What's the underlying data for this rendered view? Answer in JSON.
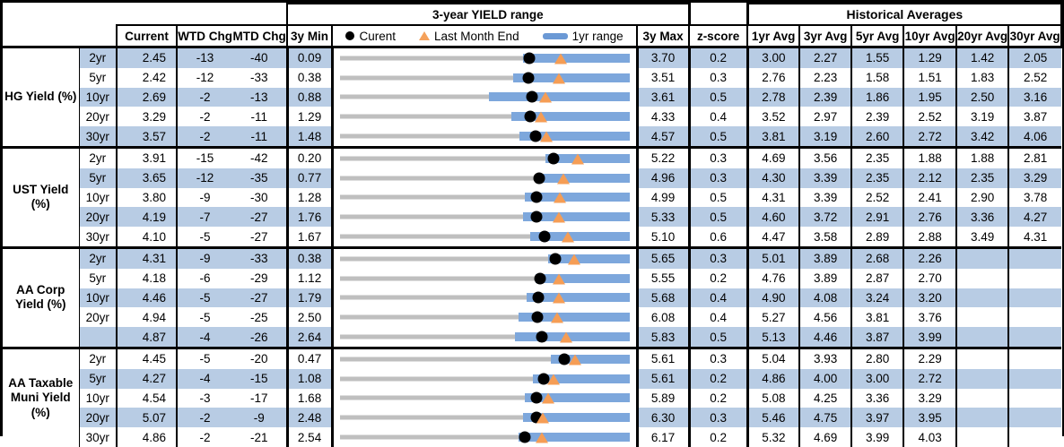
{
  "header": {
    "chart_title": "3-year YIELD range",
    "hist_title": "Historical Averages"
  },
  "columns": {
    "current": "Current",
    "wtd": "WTD Chg",
    "mtd": "MTD Chg",
    "min3y": "3y Min",
    "max3y": "3y Max",
    "z": "z-score",
    "avgs": [
      "1yr Avg",
      "3yr Avg",
      "5yr Avg",
      "10yr Avg",
      "20yr Avg",
      "30yr Avg"
    ]
  },
  "legend": {
    "current": "Curent",
    "last_month": "Last Month End",
    "range": "1yr range"
  },
  "colors": {
    "stripe": "#b8cce4",
    "bar_1yr": "#7da7dc",
    "track_3y": "#bfbfbf",
    "current_dot": "#000000",
    "last_month_triangle": "#f59d55",
    "border": "#000000"
  },
  "chart_data": {
    "type": "table",
    "title": "3-year YIELD range",
    "note": "Each row has a bullet chart: gray track spans 3y Min to 3y Max, blue bar is 1yr range, black dot is Current, orange triangle is Last Month End. range_1y low values are visual estimates.",
    "groups": [
      {
        "label": "HG Yield (%)",
        "rows": [
          {
            "tenor": "2yr",
            "current": 2.45,
            "wtd": -13,
            "mtd": -40,
            "min": 0.09,
            "max": 3.7,
            "z": 0.2,
            "last_month": 2.85,
            "range_1y": [
              2.38,
              3.7
            ],
            "avgs": [
              3.0,
              2.27,
              1.55,
              1.29,
              1.42,
              2.05
            ]
          },
          {
            "tenor": "5yr",
            "current": 2.42,
            "wtd": -12,
            "mtd": -33,
            "min": 0.38,
            "max": 3.51,
            "z": 0.3,
            "last_month": 2.75,
            "range_1y": [
              2.25,
              3.51
            ],
            "avgs": [
              2.76,
              2.23,
              1.58,
              1.51,
              1.83,
              2.52
            ]
          },
          {
            "tenor": "10yr",
            "current": 2.69,
            "wtd": -2,
            "mtd": -13,
            "min": 0.88,
            "max": 3.61,
            "z": 0.5,
            "last_month": 2.82,
            "range_1y": [
              2.29,
              3.61
            ],
            "avgs": [
              2.78,
              2.39,
              1.86,
              1.95,
              2.5,
              3.16
            ]
          },
          {
            "tenor": "20yr",
            "current": 3.29,
            "wtd": -2,
            "mtd": -11,
            "min": 1.29,
            "max": 4.33,
            "z": 0.4,
            "last_month": 3.4,
            "range_1y": [
              3.09,
              4.33
            ],
            "avgs": [
              3.52,
              2.97,
              2.39,
              2.52,
              3.19,
              3.87
            ]
          },
          {
            "tenor": "30yr",
            "current": 3.57,
            "wtd": -2,
            "mtd": -11,
            "min": 1.48,
            "max": 4.57,
            "z": 0.5,
            "last_month": 3.68,
            "range_1y": [
              3.4,
              4.57
            ],
            "avgs": [
              3.81,
              3.19,
              2.6,
              2.72,
              3.42,
              4.06
            ]
          }
        ]
      },
      {
        "label": "UST Yield (%)",
        "rows": [
          {
            "tenor": "2yr",
            "current": 3.91,
            "wtd": -15,
            "mtd": -42,
            "min": 0.2,
            "max": 5.22,
            "z": 0.3,
            "last_month": 4.33,
            "range_1y": [
              3.76,
              5.22
            ],
            "avgs": [
              4.69,
              3.56,
              2.35,
              1.88,
              1.88,
              2.81
            ]
          },
          {
            "tenor": "5yr",
            "current": 3.65,
            "wtd": -12,
            "mtd": -35,
            "min": 0.77,
            "max": 4.96,
            "z": 0.3,
            "last_month": 4.0,
            "range_1y": [
              3.6,
              4.96
            ],
            "avgs": [
              4.3,
              3.39,
              2.35,
              2.12,
              2.35,
              3.29
            ]
          },
          {
            "tenor": "10yr",
            "current": 3.8,
            "wtd": -9,
            "mtd": -30,
            "min": 1.28,
            "max": 4.99,
            "z": 0.5,
            "last_month": 4.1,
            "range_1y": [
              3.65,
              4.99
            ],
            "avgs": [
              4.31,
              3.39,
              2.52,
              2.41,
              2.9,
              3.78
            ]
          },
          {
            "tenor": "20yr",
            "current": 4.19,
            "wtd": -7,
            "mtd": -27,
            "min": 1.76,
            "max": 5.33,
            "z": 0.5,
            "last_month": 4.46,
            "range_1y": [
              4.02,
              5.33
            ],
            "avgs": [
              4.6,
              3.72,
              2.91,
              2.76,
              3.36,
              4.27
            ]
          },
          {
            "tenor": "30yr",
            "current": 4.1,
            "wtd": -5,
            "mtd": -27,
            "min": 1.67,
            "max": 5.1,
            "z": 0.6,
            "last_month": 4.37,
            "range_1y": [
              3.93,
              5.1
            ],
            "avgs": [
              4.47,
              3.58,
              2.89,
              2.88,
              3.49,
              4.31
            ]
          }
        ]
      },
      {
        "label": "AA Corp Yield (%)",
        "rows": [
          {
            "tenor": "2yr",
            "current": 4.31,
            "wtd": -9,
            "mtd": -33,
            "min": 0.38,
            "max": 5.65,
            "z": 0.3,
            "last_month": 4.64,
            "range_1y": [
              4.17,
              5.65
            ],
            "avgs": [
              5.01,
              3.89,
              2.68,
              2.26,
              null,
              null
            ]
          },
          {
            "tenor": "5yr",
            "current": 4.18,
            "wtd": -6,
            "mtd": -29,
            "min": 1.12,
            "max": 5.55,
            "z": 0.2,
            "last_month": 4.47,
            "range_1y": [
              4.11,
              5.55
            ],
            "avgs": [
              4.76,
              3.89,
              2.87,
              2.7,
              null,
              null
            ]
          },
          {
            "tenor": "10yr",
            "current": 4.46,
            "wtd": -5,
            "mtd": -27,
            "min": 1.79,
            "max": 5.68,
            "z": 0.4,
            "last_month": 4.73,
            "range_1y": [
              4.3,
              5.68
            ],
            "avgs": [
              4.9,
              4.08,
              3.24,
              3.2,
              null,
              null
            ]
          },
          {
            "tenor": "20yr",
            "current": 4.94,
            "wtd": -5,
            "mtd": -25,
            "min": 2.5,
            "max": 6.08,
            "z": 0.4,
            "last_month": 5.19,
            "range_1y": [
              4.71,
              6.08
            ],
            "avgs": [
              5.27,
              4.56,
              3.81,
              3.76,
              null,
              null
            ]
          },
          {
            "tenor": "",
            "current": 4.87,
            "wtd": -4,
            "mtd": -26,
            "min": 2.64,
            "max": 5.83,
            "z": 0.5,
            "last_month": 5.13,
            "range_1y": [
              4.57,
              5.83
            ],
            "avgs": [
              5.13,
              4.46,
              3.87,
              3.99,
              null,
              null
            ]
          }
        ]
      },
      {
        "label": "AA Taxable Muni Yield (%)",
        "rows": [
          {
            "tenor": "2yr",
            "current": 4.45,
            "wtd": -5,
            "mtd": -20,
            "min": 0.47,
            "max": 5.61,
            "z": 0.3,
            "last_month": 4.65,
            "range_1y": [
              4.22,
              5.61
            ],
            "avgs": [
              5.04,
              3.93,
              2.8,
              2.29,
              null,
              null
            ]
          },
          {
            "tenor": "5yr",
            "current": 4.27,
            "wtd": -4,
            "mtd": -15,
            "min": 1.08,
            "max": 5.61,
            "z": 0.2,
            "last_month": 4.42,
            "range_1y": [
              4.1,
              5.61
            ],
            "avgs": [
              4.86,
              4.0,
              3.0,
              2.72,
              null,
              null
            ]
          },
          {
            "tenor": "10yr",
            "current": 4.54,
            "wtd": -3,
            "mtd": -17,
            "min": 1.68,
            "max": 5.89,
            "z": 0.2,
            "last_month": 4.71,
            "range_1y": [
              4.37,
              5.89
            ],
            "avgs": [
              5.08,
              4.25,
              3.36,
              3.29,
              null,
              null
            ]
          },
          {
            "tenor": "20yr",
            "current": 5.07,
            "wtd": -2,
            "mtd": -9,
            "min": 2.48,
            "max": 6.3,
            "z": 0.3,
            "last_month": 5.16,
            "range_1y": [
              4.9,
              6.3
            ],
            "avgs": [
              5.46,
              4.75,
              3.97,
              3.95,
              null,
              null
            ]
          },
          {
            "tenor": "30yr",
            "current": 4.86,
            "wtd": -2,
            "mtd": -21,
            "min": 2.54,
            "max": 6.17,
            "z": 0.2,
            "last_month": 5.07,
            "range_1y": [
              4.78,
              6.17
            ],
            "avgs": [
              5.32,
              4.69,
              3.99,
              4.03,
              null,
              null
            ]
          }
        ]
      }
    ]
  }
}
